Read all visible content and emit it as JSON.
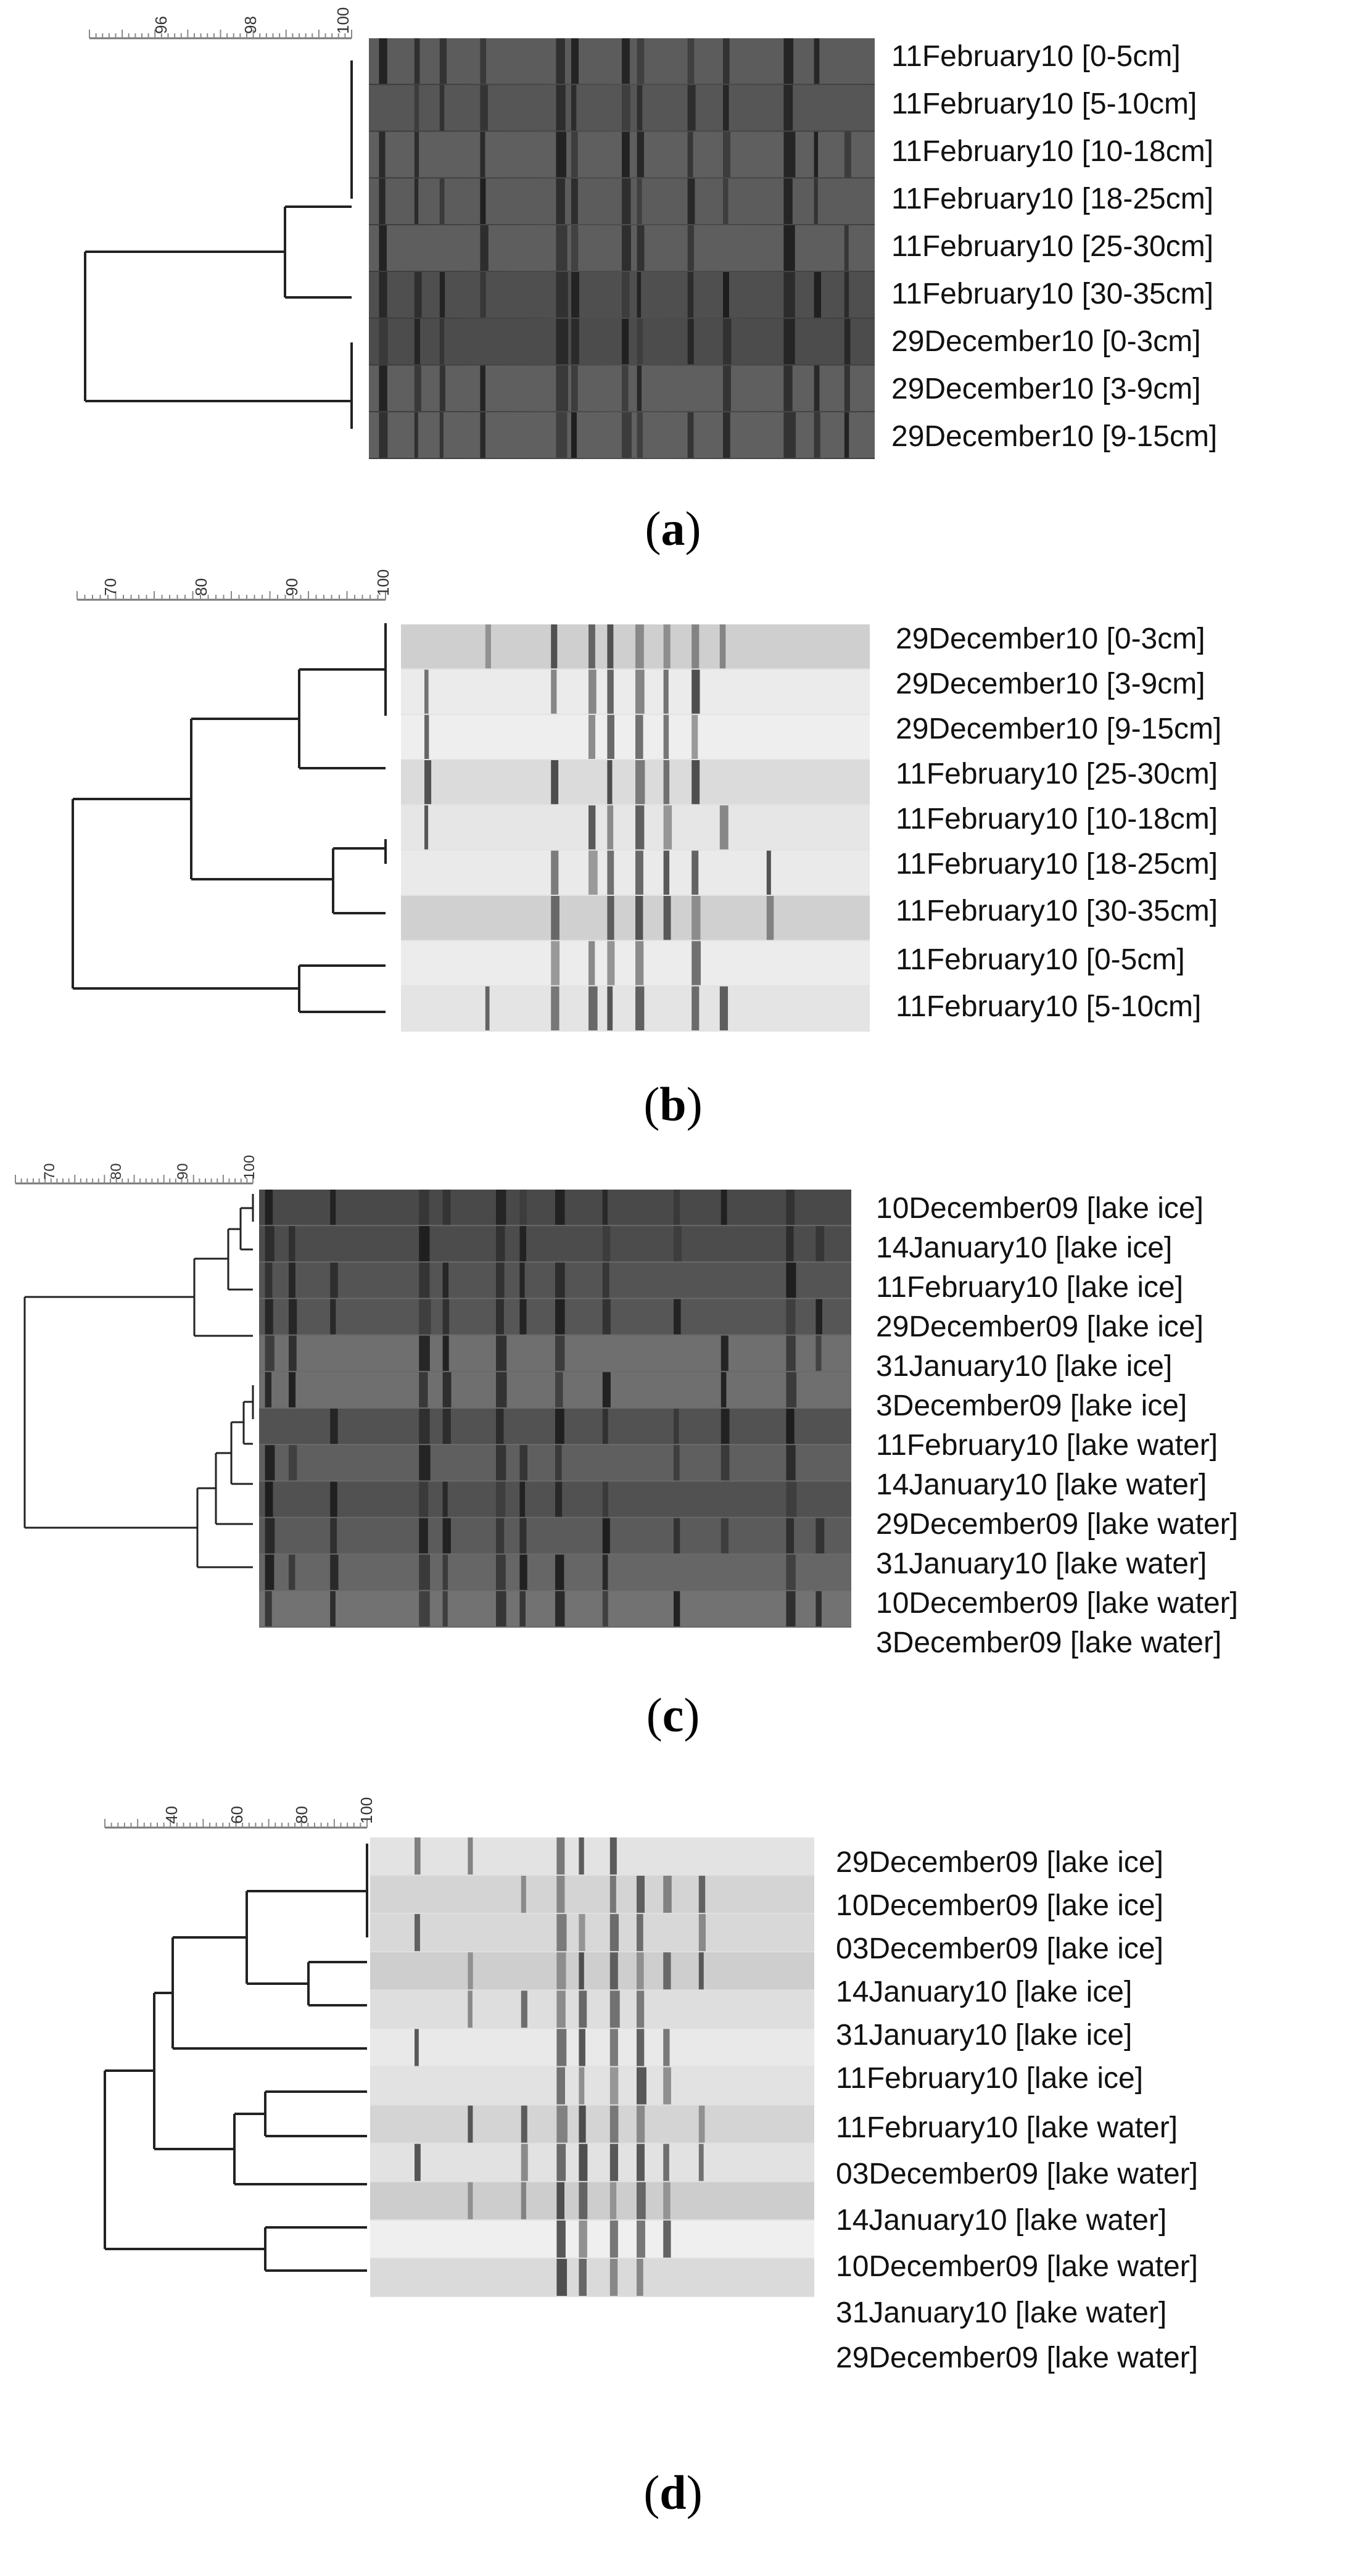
{
  "panels": [
    {
      "id": "a",
      "caption_letter": "a",
      "scale_ticks": [
        "96",
        "98",
        "100"
      ],
      "lane_labels": [
        "11February10 [0-5cm]",
        "11February10 [5-10cm]",
        "11February10 [10-18cm]",
        "11February10 [18-25cm]",
        "11February10 [25-30cm]",
        "11February10 [30-35cm]",
        "29December10 [0-3cm]",
        "29December10 [3-9cm]",
        "29December10 [9-15cm]"
      ],
      "gel_tone": "dark"
    },
    {
      "id": "b",
      "caption_letter": "b",
      "scale_ticks": [
        "70",
        "80",
        "90",
        "100"
      ],
      "lane_labels": [
        "29December10 [0-3cm]",
        "29December10 [3-9cm]",
        "29December10 [9-15cm]",
        "11February10 [25-30cm]",
        "11February10 [10-18cm]",
        "11February10 [18-25cm]",
        "11February10 [30-35cm]",
        "11February10 [0-5cm]",
        "11February10 [5-10cm]"
      ],
      "gel_tone": "light"
    },
    {
      "id": "c",
      "caption_letter": "c",
      "scale_ticks": [
        "70",
        "80",
        "90",
        "100"
      ],
      "lane_labels": [
        "10December09 [lake ice]",
        "14January10 [lake ice]",
        "11February10 [lake ice]",
        "29December09 [lake ice]",
        "31January10 [lake ice]",
        "3December09 [lake ice]",
        "11February10 [lake water]",
        "14January10 [lake water]",
        "29December09 [lake water]",
        "31January10 [lake water]",
        "10December09 [lake water]",
        "3December09 [lake water]"
      ],
      "gel_tone": "dark"
    },
    {
      "id": "d",
      "caption_letter": "d",
      "scale_ticks": [
        "40",
        "60",
        "80",
        "100"
      ],
      "lane_labels": [
        "29December09 [lake ice]",
        "10December09 [lake ice]",
        "03December09 [lake ice]",
        "14January10 [lake ice]",
        "31January10 [lake ice]",
        "11February10 [lake ice]",
        "11February10 [lake water]",
        "03December09 [lake water]",
        "14January10 [lake water]",
        "10December09 [lake water]",
        "31January10 [lake water]",
        "29December09 [lake water]"
      ],
      "gel_tone": "light"
    }
  ]
}
